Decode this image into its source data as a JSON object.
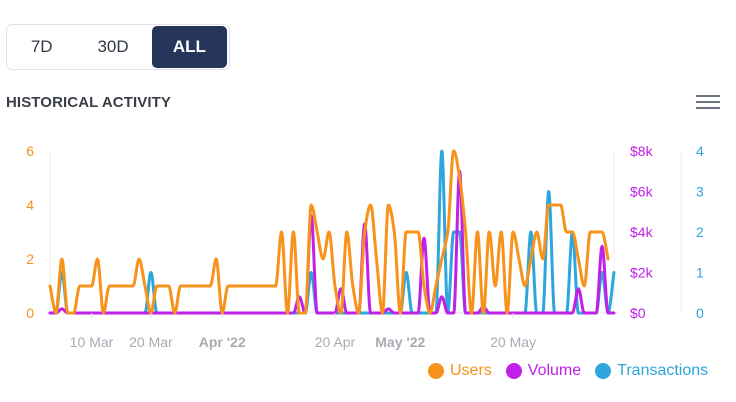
{
  "range_buttons": {
    "d7": "7D",
    "d30": "30D",
    "all": "ALL"
  },
  "title": "HISTORICAL ACTIVITY",
  "menu": {
    "icon": "hamburger-icon"
  },
  "colors": {
    "users": "#f7931a",
    "volume": "#c020e8",
    "transactions": "#2ca6dd"
  },
  "chart_data": {
    "type": "line",
    "x_start": "2022-03-03",
    "x_end": "2022-06-06",
    "x_ticks": [
      {
        "label": "10 Mar",
        "date": "2022-03-10",
        "bold": false
      },
      {
        "label": "20 Mar",
        "date": "2022-03-20",
        "bold": false
      },
      {
        "label": "Apr '22",
        "date": "2022-04-01",
        "bold": true
      },
      {
        "label": "20 Apr",
        "date": "2022-04-20",
        "bold": false
      },
      {
        "label": "May '22",
        "date": "2022-05-01",
        "bold": true
      },
      {
        "label": "20 May",
        "date": "2022-05-20",
        "bold": false
      }
    ],
    "axes": {
      "users": {
        "min": 0,
        "max": 6,
        "ticks": [
          "0",
          "2",
          "4",
          "6"
        ]
      },
      "volume": {
        "min": 0,
        "max": 8000,
        "ticks": [
          "$0",
          "$2k",
          "$4k",
          "$6k",
          "$8k"
        ]
      },
      "transactions": {
        "min": 0,
        "max": 4,
        "ticks": [
          "0",
          "1",
          "2",
          "3",
          "4"
        ]
      }
    },
    "legend_position": "bottom-right",
    "series": [
      {
        "name": "Users",
        "axis": "users",
        "values": [
          [
            "2022-03-03",
            1
          ],
          [
            "2022-03-04",
            0
          ],
          [
            "2022-03-05",
            2
          ],
          [
            "2022-03-06",
            0
          ],
          [
            "2022-03-07",
            0
          ],
          [
            "2022-03-08",
            1
          ],
          [
            "2022-03-09",
            1
          ],
          [
            "2022-03-10",
            1
          ],
          [
            "2022-03-11",
            2
          ],
          [
            "2022-03-12",
            0
          ],
          [
            "2022-03-13",
            1
          ],
          [
            "2022-03-14",
            1
          ],
          [
            "2022-03-15",
            1
          ],
          [
            "2022-03-16",
            1
          ],
          [
            "2022-03-17",
            1
          ],
          [
            "2022-03-18",
            2
          ],
          [
            "2022-03-19",
            1
          ],
          [
            "2022-03-20",
            0
          ],
          [
            "2022-03-21",
            1
          ],
          [
            "2022-03-22",
            1
          ],
          [
            "2022-03-23",
            1
          ],
          [
            "2022-03-24",
            0
          ],
          [
            "2022-03-25",
            1
          ],
          [
            "2022-03-26",
            1
          ],
          [
            "2022-03-27",
            1
          ],
          [
            "2022-03-28",
            1
          ],
          [
            "2022-03-29",
            1
          ],
          [
            "2022-03-30",
            1
          ],
          [
            "2022-03-31",
            2
          ],
          [
            "2022-04-01",
            0
          ],
          [
            "2022-04-02",
            1
          ],
          [
            "2022-04-03",
            1
          ],
          [
            "2022-04-04",
            1
          ],
          [
            "2022-04-05",
            1
          ],
          [
            "2022-04-06",
            1
          ],
          [
            "2022-04-07",
            1
          ],
          [
            "2022-04-08",
            1
          ],
          [
            "2022-04-09",
            1
          ],
          [
            "2022-04-10",
            1
          ],
          [
            "2022-04-11",
            3
          ],
          [
            "2022-04-12",
            0
          ],
          [
            "2022-04-13",
            3
          ],
          [
            "2022-04-14",
            0
          ],
          [
            "2022-04-15",
            0
          ],
          [
            "2022-04-16",
            4
          ],
          [
            "2022-04-17",
            3
          ],
          [
            "2022-04-18",
            2
          ],
          [
            "2022-04-19",
            3
          ],
          [
            "2022-04-20",
            1
          ],
          [
            "2022-04-21",
            0
          ],
          [
            "2022-04-22",
            3
          ],
          [
            "2022-04-23",
            1
          ],
          [
            "2022-04-24",
            0
          ],
          [
            "2022-04-25",
            3
          ],
          [
            "2022-04-26",
            4
          ],
          [
            "2022-04-27",
            2
          ],
          [
            "2022-04-28",
            0
          ],
          [
            "2022-04-29",
            4
          ],
          [
            "2022-04-30",
            3
          ],
          [
            "2022-05-01",
            0
          ],
          [
            "2022-05-02",
            3
          ],
          [
            "2022-05-03",
            3
          ],
          [
            "2022-05-04",
            3
          ],
          [
            "2022-05-05",
            1
          ],
          [
            "2022-05-06",
            0
          ],
          [
            "2022-05-07",
            1
          ],
          [
            "2022-05-08",
            2
          ],
          [
            "2022-05-09",
            3
          ],
          [
            "2022-05-10",
            6
          ],
          [
            "2022-05-11",
            5
          ],
          [
            "2022-05-12",
            3
          ],
          [
            "2022-05-13",
            0
          ],
          [
            "2022-05-14",
            3
          ],
          [
            "2022-05-15",
            0
          ],
          [
            "2022-05-16",
            3
          ],
          [
            "2022-05-17",
            1
          ],
          [
            "2022-05-18",
            3
          ],
          [
            "2022-05-19",
            0
          ],
          [
            "2022-05-20",
            3
          ],
          [
            "2022-05-21",
            2
          ],
          [
            "2022-05-22",
            1
          ],
          [
            "2022-05-23",
            2
          ],
          [
            "2022-05-24",
            3
          ],
          [
            "2022-05-25",
            2
          ],
          [
            "2022-05-26",
            4
          ],
          [
            "2022-05-27",
            4
          ],
          [
            "2022-05-28",
            4
          ],
          [
            "2022-05-29",
            3
          ],
          [
            "2022-05-30",
            3
          ],
          [
            "2022-05-31",
            2
          ],
          [
            "2022-06-01",
            1
          ],
          [
            "2022-06-02",
            3
          ],
          [
            "2022-06-03",
            3
          ],
          [
            "2022-06-04",
            3
          ],
          [
            "2022-06-05",
            2
          ]
        ]
      },
      {
        "name": "Volume",
        "axis": "volume",
        "values": [
          [
            "2022-03-05",
            200
          ],
          [
            "2022-04-14",
            800
          ],
          [
            "2022-04-16",
            4800
          ],
          [
            "2022-04-21",
            1200
          ],
          [
            "2022-04-25",
            4400
          ],
          [
            "2022-04-29",
            200
          ],
          [
            "2022-05-05",
            3700
          ],
          [
            "2022-05-08",
            800
          ],
          [
            "2022-05-11",
            7000
          ],
          [
            "2022-05-15",
            300
          ],
          [
            "2022-05-31",
            1200
          ],
          [
            "2022-06-04",
            3300
          ]
        ]
      },
      {
        "name": "Transactions",
        "axis": "transactions",
        "values": [
          [
            "2022-03-05",
            1
          ],
          [
            "2022-03-20",
            1
          ],
          [
            "2022-04-16",
            1
          ],
          [
            "2022-05-02",
            1
          ],
          [
            "2022-05-08",
            4
          ],
          [
            "2022-05-10",
            2
          ],
          [
            "2022-05-11",
            2
          ],
          [
            "2022-05-23",
            2
          ],
          [
            "2022-05-26",
            3
          ],
          [
            "2022-05-30",
            2
          ],
          [
            "2022-06-04",
            1
          ],
          [
            "2022-06-06",
            1
          ]
        ]
      }
    ]
  },
  "legend": {
    "users": "Users",
    "volume": "Volume",
    "transactions": "Transactions"
  }
}
